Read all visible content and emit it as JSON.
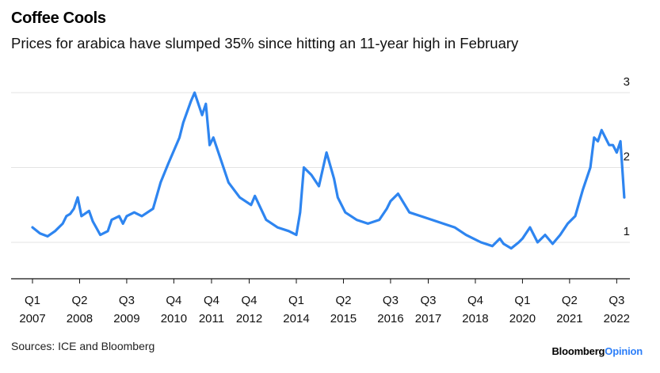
{
  "title": "Coffee Cools",
  "subtitle": "Prices for arabica have slumped 35% since hitting an 11-year high in February",
  "source": "Sources: ICE and Bloomberg",
  "brand": {
    "name": "Bloomberg",
    "suffix": "Opinion"
  },
  "chart_data": {
    "type": "line",
    "line_color": "#2e85f0",
    "grid": true,
    "ylim": [
      0.5,
      3.1
    ],
    "y_ticks": [
      1,
      2,
      3
    ],
    "xlim": [
      2007.0,
      2022.85
    ],
    "x_ticks": [
      {
        "x": 2007.0,
        "q": "Q1",
        "year": "2007"
      },
      {
        "x": 2008.25,
        "q": "Q2",
        "year": "2008"
      },
      {
        "x": 2009.5,
        "q": "Q3",
        "year": "2009"
      },
      {
        "x": 2010.75,
        "q": "Q4",
        "year": "2010"
      },
      {
        "x": 2011.75,
        "q": "Q4",
        "year": "2011"
      },
      {
        "x": 2012.75,
        "q": "Q4",
        "year": "2012"
      },
      {
        "x": 2014.0,
        "q": "Q1",
        "year": "2014"
      },
      {
        "x": 2015.25,
        "q": "Q2",
        "year": "2015"
      },
      {
        "x": 2016.5,
        "q": "Q3",
        "year": "2016"
      },
      {
        "x": 2017.5,
        "q": "Q3",
        "year": "2017"
      },
      {
        "x": 2018.75,
        "q": "Q4",
        "year": "2018"
      },
      {
        "x": 2020.0,
        "q": "Q1",
        "year": "2020"
      },
      {
        "x": 2021.25,
        "q": "Q2",
        "year": "2021"
      },
      {
        "x": 2022.5,
        "q": "Q3",
        "year": "2022"
      }
    ],
    "series": [
      {
        "x": [
          2007.0,
          2007.2,
          2007.4,
          2007.6,
          2007.8,
          2007.9,
          2008.0,
          2008.1,
          2008.2,
          2008.3,
          2008.5,
          2008.6,
          2008.8,
          2009.0,
          2009.1,
          2009.3,
          2009.4,
          2009.5,
          2009.7,
          2009.9,
          2010.2,
          2010.4,
          2010.6,
          2010.9,
          2011.0,
          2011.2,
          2011.3,
          2011.5,
          2011.6,
          2011.7,
          2011.8,
          2012.0,
          2012.2,
          2012.5,
          2012.8,
          2012.9,
          2013.2,
          2013.5,
          2013.8,
          2014.0,
          2014.1,
          2014.2,
          2014.4,
          2014.6,
          2014.8,
          2015.0,
          2015.1,
          2015.3,
          2015.6,
          2015.9,
          2016.2,
          2016.4,
          2016.5,
          2016.7,
          2017.0,
          2017.3,
          2017.6,
          2017.9,
          2018.2,
          2018.5,
          2018.7,
          2018.9,
          2019.2,
          2019.4,
          2019.5,
          2019.7,
          2019.9,
          2020.0,
          2020.2,
          2020.4,
          2020.6,
          2020.8,
          2021.0,
          2021.2,
          2021.4,
          2021.6,
          2021.8,
          2021.9,
          2022.0,
          2022.1,
          2022.3,
          2022.4,
          2022.5,
          2022.6,
          2022.7
        ],
        "y": [
          1.2,
          1.12,
          1.08,
          1.15,
          1.25,
          1.35,
          1.38,
          1.45,
          1.6,
          1.35,
          1.42,
          1.28,
          1.1,
          1.15,
          1.3,
          1.35,
          1.25,
          1.35,
          1.4,
          1.35,
          1.45,
          1.8,
          2.05,
          2.4,
          2.6,
          2.88,
          3.0,
          2.7,
          2.85,
          2.3,
          2.4,
          2.1,
          1.8,
          1.6,
          1.5,
          1.62,
          1.3,
          1.2,
          1.15,
          1.1,
          1.4,
          2.0,
          1.9,
          1.75,
          2.2,
          1.85,
          1.6,
          1.4,
          1.3,
          1.25,
          1.3,
          1.45,
          1.55,
          1.65,
          1.4,
          1.35,
          1.3,
          1.25,
          1.2,
          1.1,
          1.05,
          1.0,
          0.95,
          1.05,
          0.98,
          0.92,
          1.0,
          1.05,
          1.2,
          1.0,
          1.1,
          0.98,
          1.1,
          1.25,
          1.35,
          1.7,
          2.0,
          2.4,
          2.35,
          2.5,
          2.3,
          2.3,
          2.2,
          2.35,
          1.6
        ]
      }
    ]
  }
}
